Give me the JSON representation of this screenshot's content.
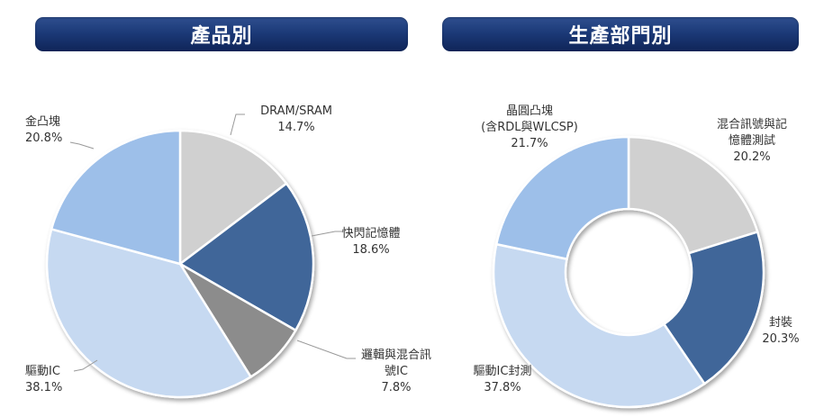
{
  "headers": {
    "product": "產品別",
    "department": "生產部門別"
  },
  "colors": {
    "header_bg": "#1c3a78",
    "slice_gray": "#d0d0d0",
    "slice_dark_blue": "#3f6699",
    "slice_mid_gray": "#8c8c8c",
    "slice_light_blue": "#c6d9f1",
    "slice_blue": "#9dbfe9"
  },
  "chart_data": [
    {
      "type": "pie",
      "title": "產品別",
      "slices": [
        {
          "label": [
            "DRAM/SRAM"
          ],
          "pct_text": "14.7%",
          "value": 14.7,
          "color": "#d0d0d0"
        },
        {
          "label": [
            "快閃記憶體"
          ],
          "pct_text": "18.6%",
          "value": 18.6,
          "color": "#3f6699"
        },
        {
          "label": [
            "邏輯與混合訊",
            "號IC"
          ],
          "pct_text": "7.8%",
          "value": 7.8,
          "color": "#8c8c8c"
        },
        {
          "label": [
            "驅動IC"
          ],
          "pct_text": "38.1%",
          "value": 38.1,
          "color": "#c6d9f1"
        },
        {
          "label": [
            "金凸塊"
          ],
          "pct_text": "20.8%",
          "value": 20.8,
          "color": "#9dbfe9"
        }
      ]
    },
    {
      "type": "donut",
      "title": "生產部門別",
      "slices": [
        {
          "label": [
            "混合訊號與記",
            "憶體測試"
          ],
          "pct_text": "20.2%",
          "value": 20.2,
          "color": "#d0d0d0"
        },
        {
          "label": [
            "封裝"
          ],
          "pct_text": "20.3%",
          "value": 20.3,
          "color": "#3f6699"
        },
        {
          "label": [
            "驅動IC封測"
          ],
          "pct_text": "37.8%",
          "value": 37.8,
          "color": "#c6d9f1"
        },
        {
          "label": [
            "晶圓凸塊",
            "(含RDL與WLCSP)"
          ],
          "pct_text": "21.7%",
          "value": 21.7,
          "color": "#9dbfe9"
        }
      ]
    }
  ]
}
